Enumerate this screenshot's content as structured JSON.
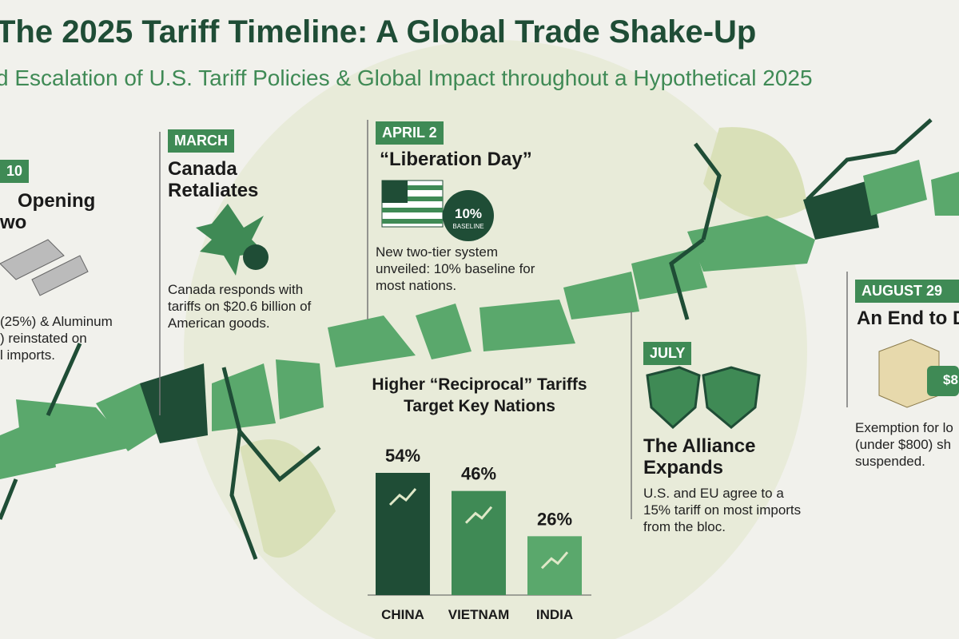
{
  "header": {
    "title": "The 2025 Tariff Timeline: A Global Trade Shake-Up",
    "subtitle": "d Escalation of U.S. Tariff Policies & Global Impact throughout a Hypothetical 2025"
  },
  "events": [
    {
      "date": "10",
      "title_lines": [
        "Opening",
        "wo"
      ],
      "body_lines": [
        "(25%) & Aluminum",
        ") reinstated on",
        "l imports."
      ]
    },
    {
      "date": "MARCH",
      "title": "Canada Retaliates",
      "body": "Canada responds with tariffs on $20.6 billion of American goods."
    },
    {
      "date": "APRIL 2",
      "title": "“Liberation Day”",
      "badge_value": "10%",
      "badge_label": "BASELINE",
      "body": "New two-tier system unveiled: 10% baseline for most nations."
    },
    {
      "date": "JULY",
      "title": "The Alliance Expands",
      "body": "U.S. and EU agree to a 15% tariff on most imports from the bloc."
    },
    {
      "date": "AUGUST 29",
      "title": "An End to D",
      "badge": "$8",
      "body": "Exemption for lo (under $800) sh suspended."
    }
  ],
  "chart_data": {
    "type": "bar",
    "title": "Higher “Reciprocal” Tariffs Target Key Nations",
    "categories": [
      "CHINA",
      "VIETNAM",
      "INDIA"
    ],
    "values": [
      54,
      46,
      26
    ],
    "value_labels": [
      "54%",
      "46%",
      "26%"
    ],
    "colors": [
      "#1f4d36",
      "#3f8a55",
      "#5aa86c"
    ]
  }
}
